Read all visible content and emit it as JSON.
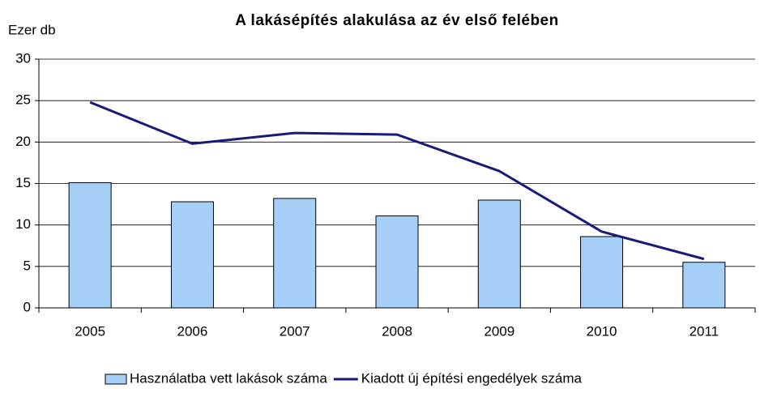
{
  "chart_data": {
    "type": "bar",
    "title": "A lakásépítés alakulása az év első felében",
    "y_label": "Ezer db",
    "categories": [
      "2005",
      "2006",
      "2007",
      "2008",
      "2009",
      "2010",
      "2011"
    ],
    "series": [
      {
        "name": "Használatba vett lakások száma",
        "type": "bar",
        "color": "#a6cff8",
        "values": [
          15.1,
          12.8,
          13.2,
          11.1,
          13.0,
          8.6,
          5.5
        ]
      },
      {
        "name": "Kiadott új építési engedélyek száma",
        "type": "line",
        "color": "#1a1a78",
        "values": [
          24.8,
          19.8,
          21.1,
          20.9,
          16.5,
          9.2,
          5.9
        ]
      }
    ],
    "ylim": [
      0,
      30
    ],
    "yticks": [
      0,
      5,
      10,
      15,
      20,
      25,
      30
    ],
    "grid": true,
    "legend": "bottom"
  }
}
